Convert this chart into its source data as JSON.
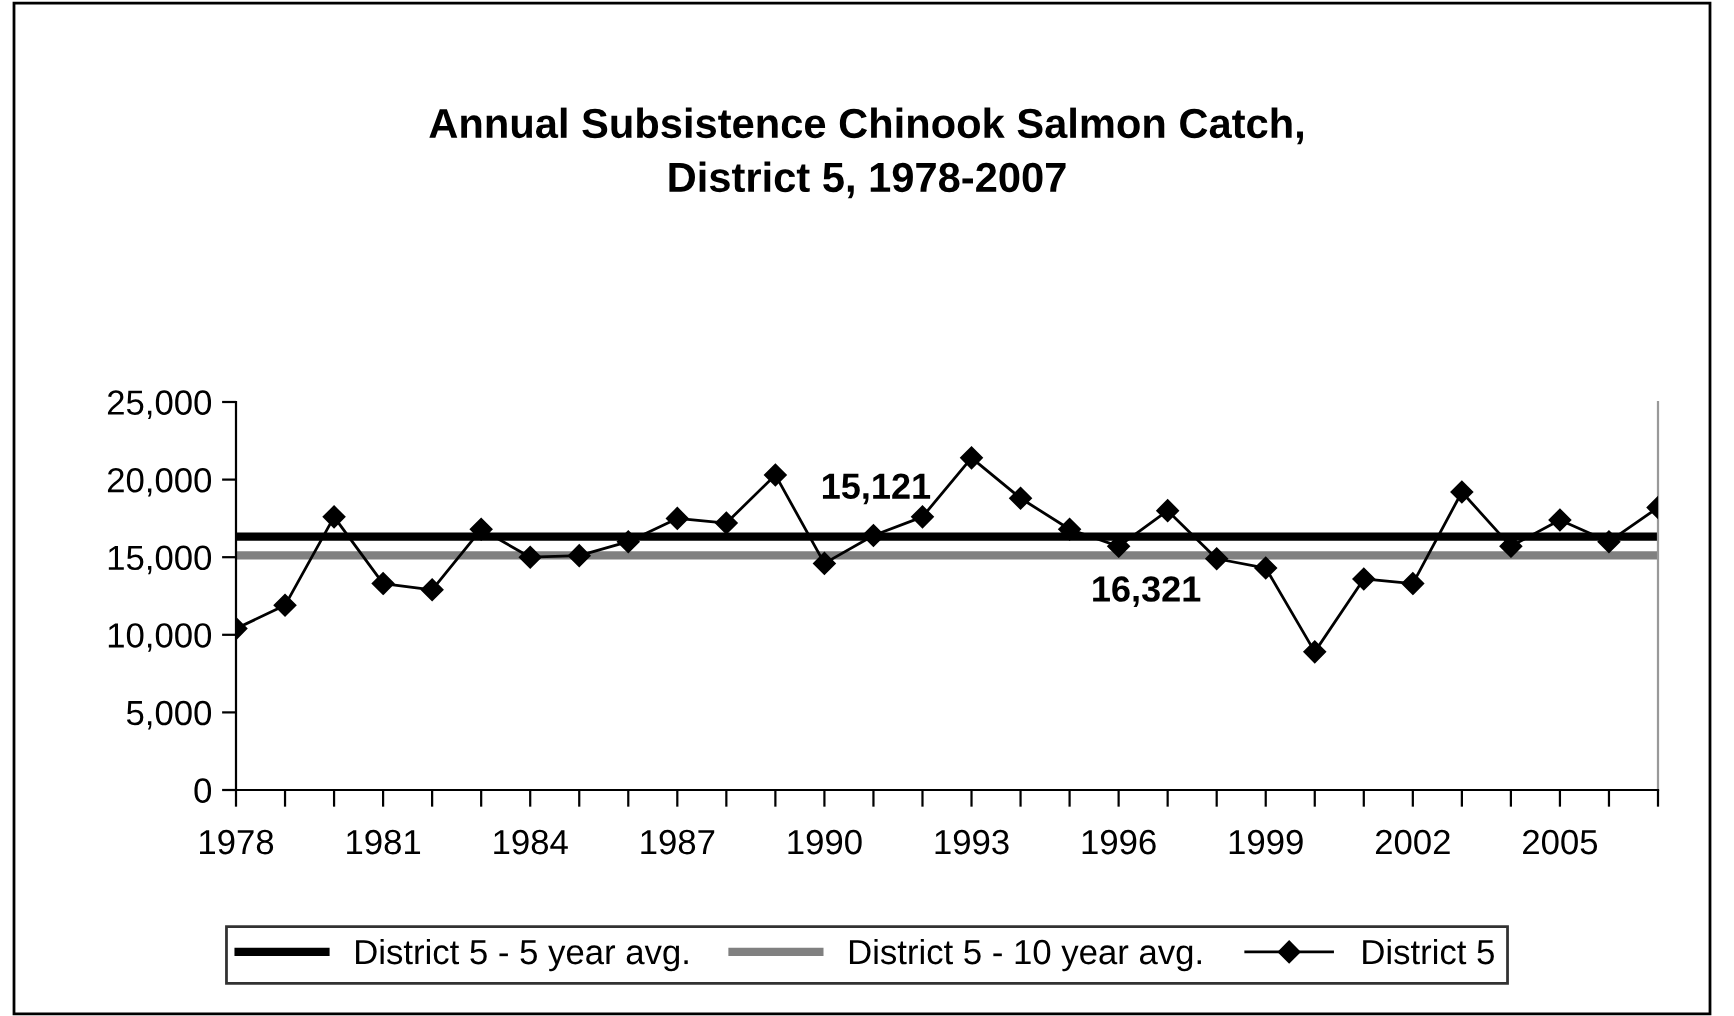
{
  "chart_data": {
    "type": "line",
    "title": "Annual Subsistence Chinook Salmon Catch,\nDistrict 5, 1978-2007",
    "x": [
      1978,
      1979,
      1980,
      1981,
      1982,
      1983,
      1984,
      1985,
      1986,
      1987,
      1988,
      1989,
      1990,
      1991,
      1992,
      1993,
      1994,
      1995,
      1996,
      1997,
      1998,
      1999,
      2000,
      2001,
      2002,
      2003,
      2004,
      2005,
      2006,
      2007
    ],
    "series": [
      {
        "name": "District 5",
        "color": "#000000",
        "marker": "diamond",
        "values": [
          10400,
          11900,
          17600,
          13300,
          12900,
          16800,
          15000,
          15100,
          16000,
          17500,
          17200,
          20300,
          14600,
          16400,
          17600,
          21400,
          18800,
          16800,
          15700,
          18000,
          14900,
          14300,
          8900,
          13600,
          13300,
          19200,
          15700,
          17400,
          16000,
          18200
        ]
      }
    ],
    "ref_lines": [
      {
        "axis": "y",
        "value": 16321,
        "label": "District 5 - 5 year avg.",
        "color": "#000000"
      },
      {
        "axis": "y",
        "value": 15121,
        "label": "District 5 - 10 year avg.",
        "color": "#808080"
      }
    ],
    "annotations": [
      "15,121",
      "16,321"
    ],
    "xlim": [
      1978,
      2007
    ],
    "xticks": [
      1978,
      {
        "value": 1979,
        "label": null
      },
      {
        "value": 1980,
        "label": null
      },
      1981,
      {
        "value": 1982,
        "label": null
      },
      {
        "value": 1983,
        "label": null
      },
      1984,
      {
        "value": 1985,
        "label": null
      },
      {
        "value": 1986,
        "label": null
      },
      1987,
      {
        "value": 1988,
        "label": null
      },
      {
        "value": 1989,
        "label": null
      },
      1990,
      {
        "value": 1991,
        "label": null
      },
      {
        "value": 1992,
        "label": null
      },
      1993,
      {
        "value": 1994,
        "label": null
      },
      {
        "value": 1995,
        "label": null
      },
      1996,
      {
        "value": 1997,
        "label": null
      },
      {
        "value": 1998,
        "label": null
      },
      1999,
      {
        "value": 2000,
        "label": null
      },
      {
        "value": 2001,
        "label": null
      },
      2002,
      {
        "value": 2003,
        "label": null
      },
      {
        "value": 2004,
        "label": null
      },
      2005,
      {
        "value": 2006,
        "label": null
      },
      {
        "value": 2007,
        "label": null
      }
    ],
    "ylim": [
      0,
      25000
    ],
    "yticks": [
      {
        "value": 0,
        "label": "0"
      },
      {
        "value": 5000,
        "label": "5,000"
      },
      {
        "value": 10000,
        "label": "10,000"
      },
      {
        "value": 15000,
        "label": "15,000"
      },
      {
        "value": 20000,
        "label": "20,000"
      },
      {
        "value": 25000,
        "label": "25,000"
      }
    ],
    "grid": false,
    "legend": "bottom"
  }
}
